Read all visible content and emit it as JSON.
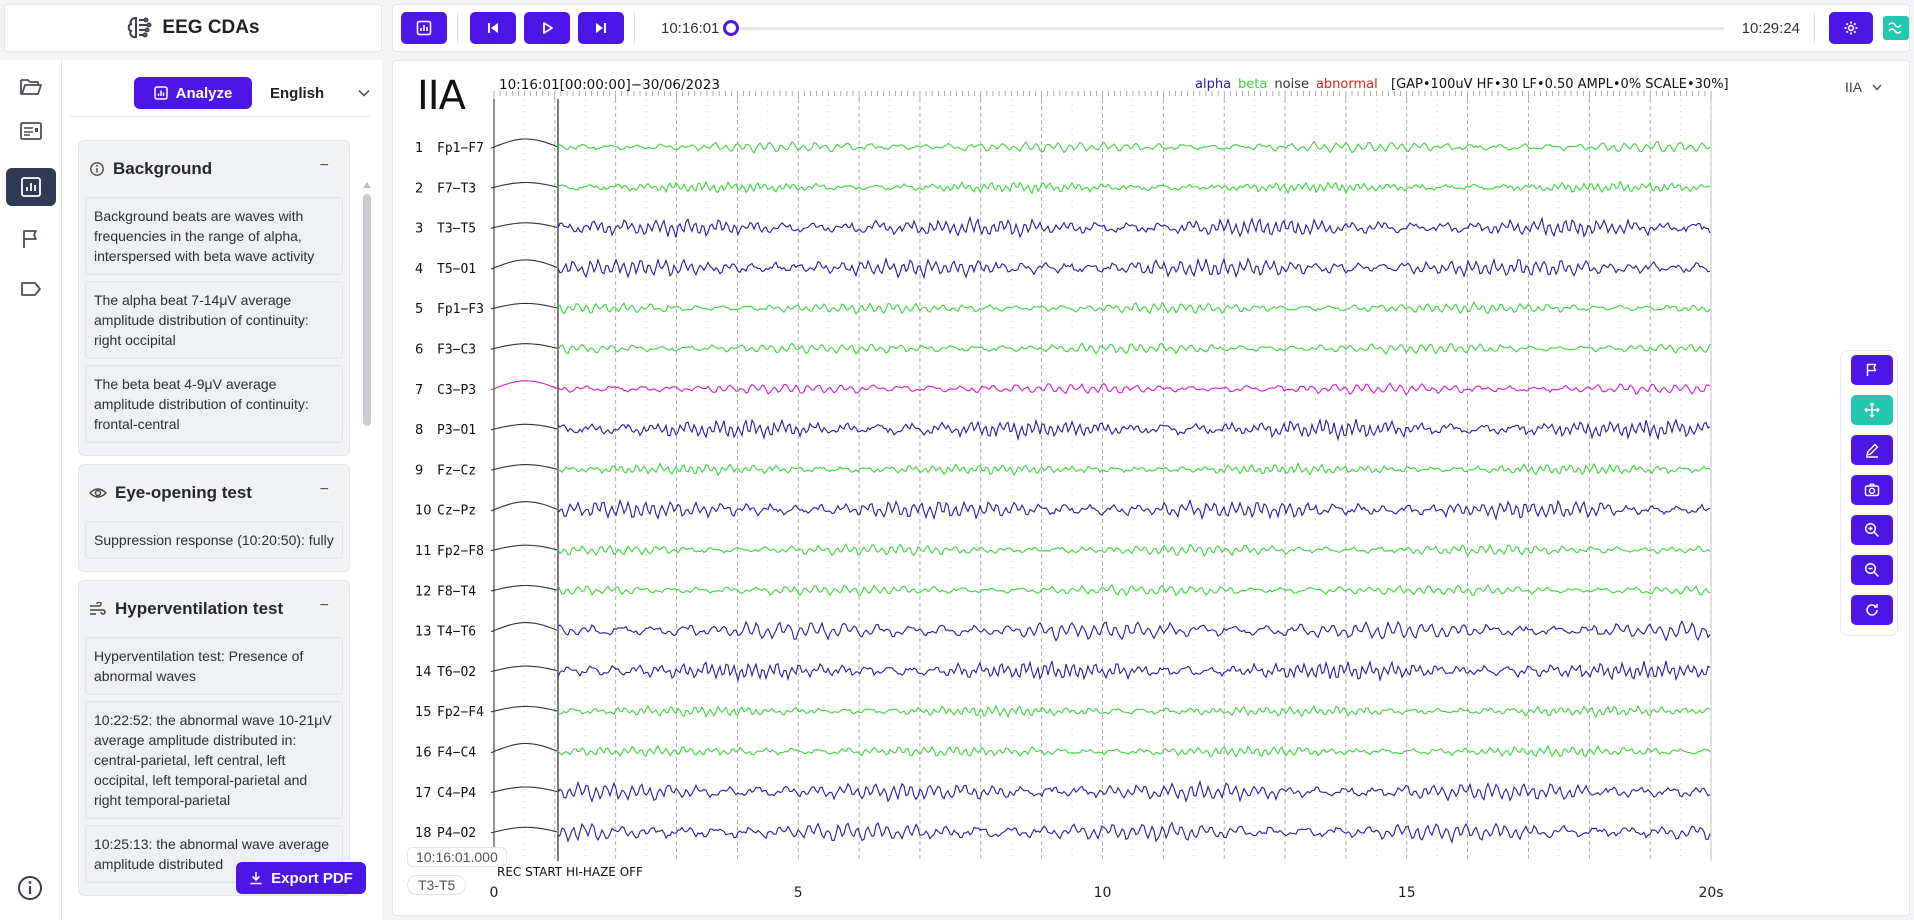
{
  "app": {
    "title": "EEG CDAs"
  },
  "toolbar": {
    "start_time": "10:16:01",
    "end_time": "10:29:24",
    "progress": 0.0
  },
  "panel": {
    "analyze_label": "Analyze",
    "language": "English",
    "export_label": "Export PDF",
    "sections": [
      {
        "title": "Background",
        "icon": "info-icon",
        "collapse": "−",
        "items": [
          "Background beats are waves with frequencies in the range of alpha, interspersed with beta wave activity",
          "The alpha beat 7-14μV average amplitude distribution of continuity: right occipital",
          "The beta beat 4-9μV average amplitude distribution of continuity: frontal-central"
        ]
      },
      {
        "title": "Eye-opening test",
        "icon": "eye-icon",
        "collapse": "−",
        "items": [
          "Suppression response (10:20:50): fully"
        ]
      },
      {
        "title": "Hyperventilation test",
        "icon": "wind-icon",
        "collapse": "−",
        "items": [
          "Hyperventilation test: Presence of abnormal waves",
          "10:22:52: the abnormal wave 10-21μV average amplitude distributed in: central-parietal, left central, left occipital, left temporal-parietal and right temporal-parietal",
          "10:25:13: the abnormal wave average amplitude distributed"
        ]
      }
    ]
  },
  "eeg": {
    "montage": "IIA",
    "montage_select": "IIA",
    "header": "10:16:01[00:00:00]−30/06/2023",
    "legend": [
      {
        "label": "alpha",
        "color": "#2a1aa3"
      },
      {
        "label": "beta",
        "color": "#3cd43c"
      },
      {
        "label": "noise",
        "color": "#333333"
      },
      {
        "label": "abnormal",
        "color": "#e0201c"
      }
    ],
    "params": "[GAP•100uV HF•30 LF•0.50 AMPL•0% SCALE•30%]",
    "channels": [
      "Fp1−F7",
      "F7−T3",
      "T3−T5",
      "T5−O1",
      "Fp1−F3",
      "F3−C3",
      "C3−P3",
      "P3−O1",
      "Fz−Cz",
      "Cz−Pz",
      "Fp2−F8",
      "F8−T4",
      "T4−T6",
      "T6−O2",
      "Fp2−F4",
      "F4−C4",
      "C4−P4",
      "P4−O2"
    ],
    "channel_colors": [
      "#3cd43c",
      "#3cd43c",
      "#2a1aa3",
      "#2a1aa3",
      "#3cd43c",
      "#3cd43c",
      "#d21bd2",
      "#2a1aa3",
      "#3cd43c",
      "#2a1aa3",
      "#3cd43c",
      "#3cd43c",
      "#2a1aa3",
      "#2a1aa3",
      "#3cd43c",
      "#3cd43c",
      "#2a1aa3",
      "#2a1aa3"
    ],
    "x_ticks": [
      "0",
      "5",
      "10",
      "15",
      "20s"
    ],
    "event_label": "REC START HI-HAZE OFF",
    "cursor_time": "10:16:01.000",
    "selected_channel": "T3-T5"
  }
}
